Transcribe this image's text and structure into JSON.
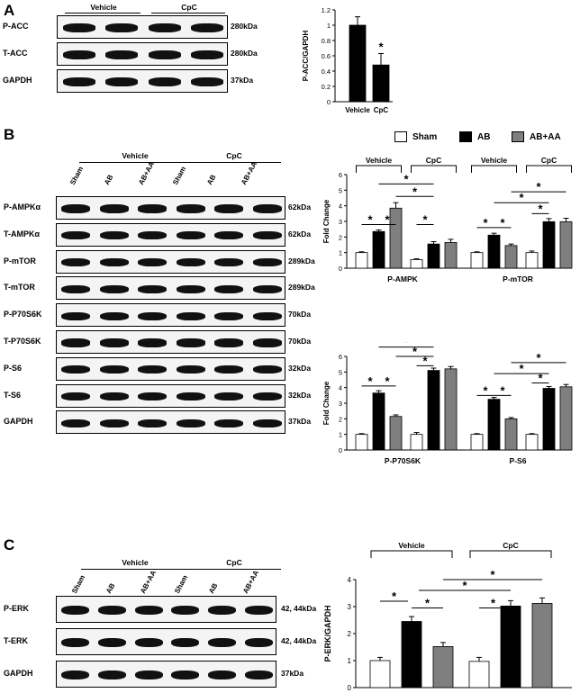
{
  "panels": {
    "A": "A",
    "B": "B",
    "C": "C"
  },
  "panelA": {
    "groups": [
      "Vehicle",
      "CpC"
    ],
    "rows": [
      {
        "label": "P-ACC",
        "kda": "280kDa"
      },
      {
        "label": "T-ACC",
        "kda": "280kDa"
      },
      {
        "label": "GAPDH",
        "kda": "37kDa"
      }
    ]
  },
  "panelB": {
    "groups": [
      "Vehicle",
      "CpC"
    ],
    "lanes": [
      "Sham",
      "AB",
      "AB+AA",
      "Sham",
      "AB",
      "AB+AA"
    ],
    "rows": [
      {
        "label": "P-AMPKα",
        "kda": "62kDa"
      },
      {
        "label": "T-AMPKα",
        "kda": "62kDa"
      },
      {
        "label": "P-mTOR",
        "kda": "289kDa"
      },
      {
        "label": "T-mTOR",
        "kda": "289kDa"
      },
      {
        "label": "P-P70S6K",
        "kda": "70kDa"
      },
      {
        "label": "T-P70S6K",
        "kda": "70kDa"
      },
      {
        "label": "P-S6",
        "kda": "32kDa"
      },
      {
        "label": "T-S6",
        "kda": "32kDa"
      },
      {
        "label": "GAPDH",
        "kda": "37kDa"
      }
    ],
    "legend": [
      {
        "name": "Sham",
        "color": "#ffffff"
      },
      {
        "name": "AB",
        "color": "#000000"
      },
      {
        "name": "AB+AA",
        "color": "#7f7f7f"
      }
    ],
    "chart_groups": [
      "Vehicle",
      "CpC",
      "Vehicle",
      "CpC"
    ]
  },
  "panelC": {
    "groups": [
      "Vehicle",
      "CpC"
    ],
    "lanes": [
      "Sham",
      "AB",
      "AB+AA",
      "Sham",
      "AB",
      "AB+AA"
    ],
    "rows": [
      {
        "label": "P-ERK",
        "kda": "42, 44kDa"
      },
      {
        "label": "T-ERK",
        "kda": "42, 44kDa"
      },
      {
        "label": "GAPDH",
        "kda": "37kDa"
      }
    ],
    "chart_groups": [
      "Vehicle",
      "CpC"
    ]
  },
  "chart_data": [
    {
      "id": "A",
      "type": "bar",
      "categories": [
        "Vehicle",
        "CpC"
      ],
      "values": [
        1.0,
        0.48
      ],
      "errors": [
        0.11,
        0.15
      ],
      "colors": [
        "#000000",
        "#000000"
      ],
      "ylabel": "P-ACC/GAPDH",
      "ylim": [
        0,
        1.2
      ],
      "yticks": [
        "0",
        "0.2",
        "0.4",
        "0.6",
        "0.8",
        "1",
        "1.2"
      ],
      "sig": [
        "*"
      ]
    },
    {
      "id": "B1",
      "type": "bar",
      "ylabel": "Fold Change",
      "ylim": [
        0,
        6
      ],
      "yticks": [
        "0",
        "1",
        "2",
        "3",
        "4",
        "5",
        "6"
      ],
      "groups": [
        "P-AMPK",
        "P-mTOR"
      ],
      "series": [
        {
          "group": "P-AMPK",
          "values": [
            1.0,
            2.35,
            3.85,
            0.55,
            1.55,
            1.65
          ],
          "errors": [
            0.05,
            0.1,
            0.35,
            0.05,
            0.15,
            0.2
          ]
        },
        {
          "group": "P-mTOR",
          "values": [
            1.0,
            2.12,
            1.45,
            1.0,
            2.98,
            2.98
          ],
          "errors": [
            0.05,
            0.12,
            0.1,
            0.1,
            0.2,
            0.22
          ]
        }
      ],
      "sig": "*"
    },
    {
      "id": "B2",
      "type": "bar",
      "ylabel": "Fold Change",
      "ylim": [
        0,
        6
      ],
      "yticks": [
        "0",
        "1",
        "2",
        "3",
        "4",
        "5",
        "6"
      ],
      "groups": [
        "P-P70S6K",
        "P-S6"
      ],
      "series": [
        {
          "group": "P-P70S6K",
          "values": [
            1.0,
            3.65,
            2.15,
            1.0,
            5.1,
            5.2
          ],
          "errors": [
            0.05,
            0.15,
            0.1,
            0.12,
            0.15,
            0.15
          ]
        },
        {
          "group": "P-S6",
          "values": [
            1.0,
            3.25,
            2.0,
            1.0,
            3.95,
            4.05
          ],
          "errors": [
            0.05,
            0.12,
            0.08,
            0.05,
            0.12,
            0.15
          ]
        }
      ],
      "sig": "*"
    },
    {
      "id": "C",
      "type": "bar",
      "ylabel": "P-ERK/GAPDH",
      "ylim": [
        0,
        4
      ],
      "yticks": [
        "0",
        "1",
        "2",
        "3",
        "4"
      ],
      "values": [
        1.0,
        2.45,
        1.52,
        0.97,
        3.02,
        3.12
      ],
      "errors": [
        0.12,
        0.18,
        0.15,
        0.15,
        0.2,
        0.2
      ],
      "sig": "*"
    }
  ]
}
